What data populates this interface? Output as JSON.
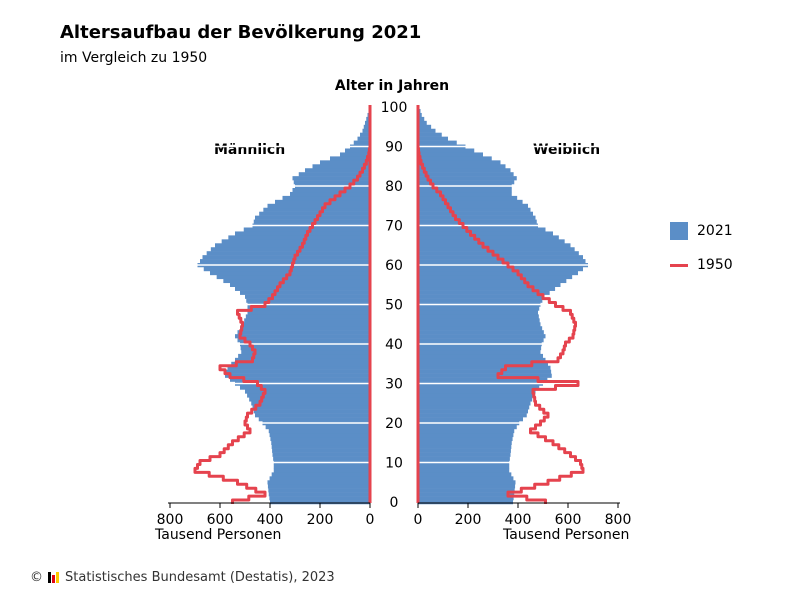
{
  "chart_data": {
    "type": "bar",
    "title": "Altersaufbau der Bevölkerung 2021",
    "subtitle": "im Vergleich zu 1950",
    "age_axis_label": "Alter in Jahren",
    "x_unit_label": "Tausend Personen",
    "panels": [
      "Männlich",
      "Weiblich"
    ],
    "age_ticks": [
      0,
      10,
      20,
      30,
      40,
      50,
      60,
      70,
      80,
      90,
      100
    ],
    "x_ticks": [
      800,
      600,
      400,
      200,
      0
    ],
    "xlim": [
      0,
      800
    ],
    "ylim": [
      0,
      100
    ],
    "age_points": [
      0,
      2,
      5,
      8,
      10,
      12,
      15,
      18,
      20,
      22,
      25,
      28,
      30,
      32,
      34,
      36,
      38,
      40,
      42,
      45,
      48,
      50,
      52,
      55,
      58,
      60,
      62,
      65,
      68,
      70,
      72,
      75,
      78,
      80,
      82,
      84,
      86,
      88,
      90,
      92,
      94,
      96,
      98,
      100
    ],
    "series": [
      {
        "name": "2021",
        "kind": "bar",
        "male": [
          400,
          405,
          410,
          385,
          385,
          390,
          395,
          405,
          430,
          460,
          475,
          500,
          540,
          580,
          570,
          540,
          515,
          520,
          540,
          510,
          490,
          490,
          500,
          560,
          640,
          690,
          670,
          620,
          540,
          470,
          460,
          410,
          320,
          300,
          310,
          260,
          200,
          120,
          80,
          50,
          30,
          20,
          10,
          0
        ],
        "female": [
          380,
          385,
          390,
          365,
          365,
          370,
          375,
          385,
          405,
          435,
          450,
          470,
          500,
          535,
          530,
          510,
          490,
          495,
          510,
          490,
          480,
          490,
          505,
          570,
          640,
          680,
          660,
          610,
          540,
          480,
          470,
          440,
          375,
          375,
          395,
          370,
          330,
          260,
          190,
          120,
          70,
          35,
          15,
          5
        ]
      },
      {
        "name": "1950",
        "kind": "line",
        "male": [
          550,
          420,
          530,
          700,
          680,
          600,
          550,
          480,
          500,
          490,
          440,
          420,
          450,
          560,
          600,
          470,
          460,
          480,
          520,
          510,
          530,
          420,
          390,
          360,
          320,
          310,
          300,
          270,
          250,
          230,
          210,
          180,
          120,
          80,
          50,
          30,
          15,
          5,
          0,
          0,
          0,
          0,
          0,
          0
        ],
        "female": [
          510,
          360,
          520,
          660,
          650,
          610,
          540,
          450,
          490,
          520,
          470,
          460,
          640,
          320,
          350,
          560,
          580,
          590,
          620,
          630,
          610,
          550,
          500,
          440,
          400,
          360,
          320,
          260,
          210,
          180,
          150,
          120,
          90,
          60,
          40,
          25,
          12,
          4,
          0,
          0,
          0,
          0,
          0,
          0
        ]
      }
    ],
    "legend": [
      "2021",
      "1950"
    ],
    "legend_position": "right",
    "grid": false,
    "colors": {
      "bar_2021": "#5b8ec7",
      "line_1950": "#e5434e"
    }
  },
  "footer": {
    "copyright": "©",
    "source": "Statistisches Bundesamt (Destatis), 2023",
    "logo_colors": [
      "#000000",
      "#e30613",
      "#ffcc00"
    ]
  }
}
